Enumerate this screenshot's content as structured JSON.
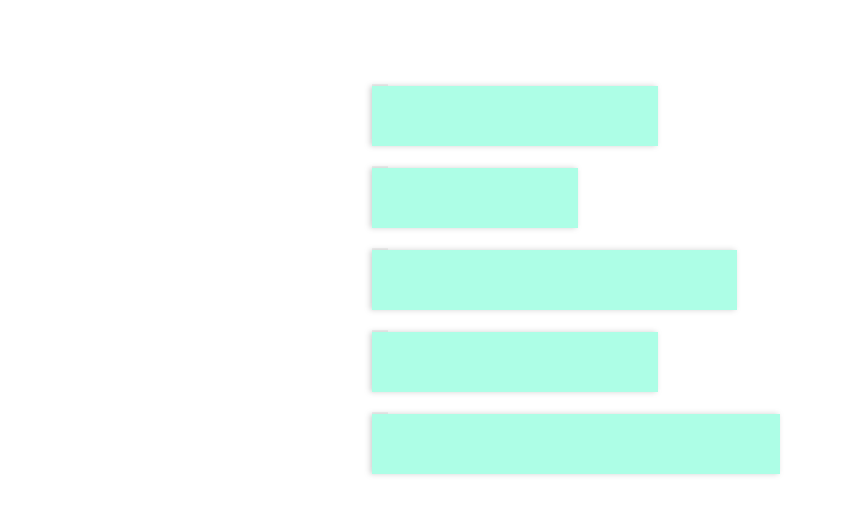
{
  "chart_data": {
    "type": "bar",
    "orientation": "horizontal",
    "categories": [
      null,
      null,
      null,
      null,
      null
    ],
    "values": [
      286,
      206,
      365,
      286,
      408
    ],
    "color": "#adfee6",
    "xlim": [
      0,
      496
    ]
  }
}
